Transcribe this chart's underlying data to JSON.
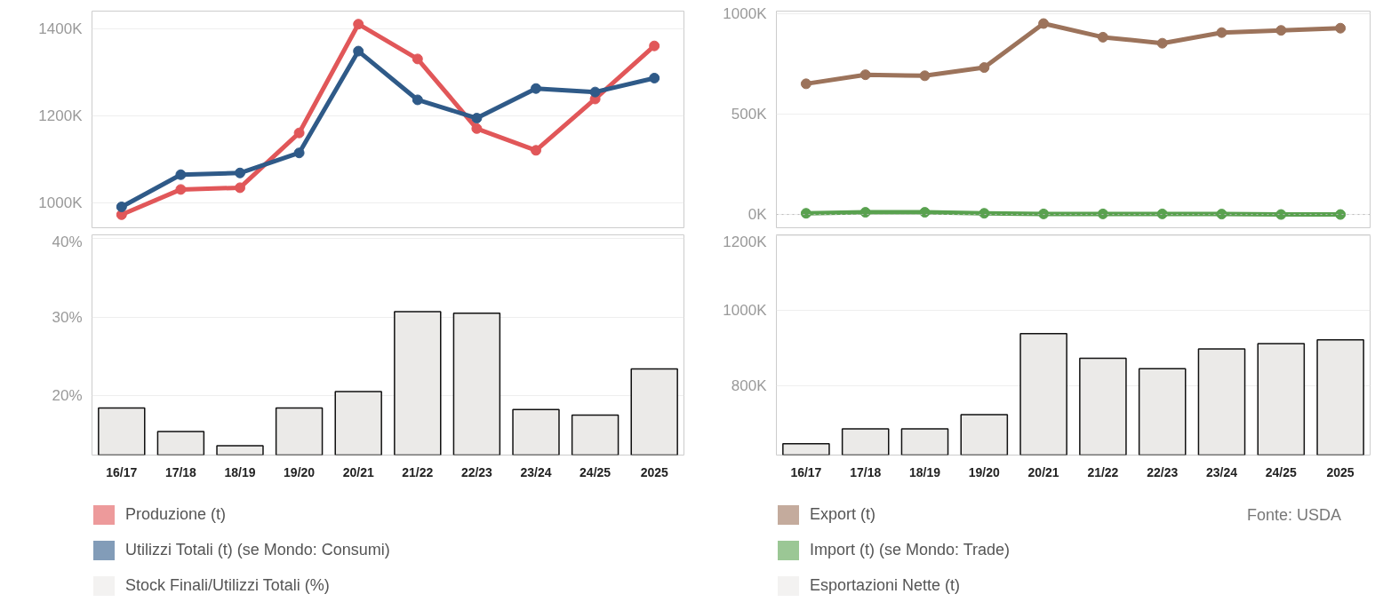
{
  "chart_data": [
    {
      "type": "line",
      "categories": [
        null,
        null,
        null,
        null,
        null,
        null,
        null,
        null,
        null,
        null
      ],
      "series": [
        {
          "name": "Produzione (t)",
          "color": "#e15759",
          "values": [
            972,
            1030,
            1034,
            1160,
            1410,
            1330,
            1170,
            1120,
            1238,
            1360
          ]
        },
        {
          "name": "Utilizzi Totali (t) (se Mondo: Consumi)",
          "color": "#2f5a88",
          "values": [
            990,
            1064,
            1068,
            1114,
            1348,
            1236,
            1194,
            1262,
            1254,
            1286
          ]
        }
      ],
      "ylim": [
        942,
        1440
      ],
      "yticks": [
        {
          "value": 1000,
          "label": "1000K"
        },
        {
          "value": 1200,
          "label": "1200K"
        },
        {
          "value": 1400,
          "label": "1400K"
        }
      ],
      "grid": "y",
      "marker": "circle",
      "legend": "bottom",
      "tick_labels": "y"
    },
    {
      "type": "line",
      "categories": [
        null,
        null,
        null,
        null,
        null,
        null,
        null,
        null,
        null,
        null
      ],
      "series": [
        {
          "name": "Export (t)",
          "color": "#9c735b",
          "values": [
            651,
            696,
            691,
            732,
            951,
            883,
            853,
            906,
            917,
            928
          ]
        },
        {
          "name": "Import (t) (se Mondo: Trade)",
          "color": "#59a14f",
          "values": [
            6,
            11,
            11,
            6,
            3,
            3,
            3,
            2,
            0,
            0
          ]
        }
      ],
      "ylim": [
        -66,
        1013
      ],
      "yticks": [
        {
          "value": 0,
          "label": "0K"
        },
        {
          "value": 500,
          "label": "500K"
        },
        {
          "value": 1000,
          "label": "1000K"
        }
      ],
      "ref_lines": [
        {
          "axis": "y",
          "value": 0,
          "color": "#bbbbbb",
          "line_style": "dotted"
        }
      ],
      "grid": "y",
      "marker": "circle",
      "legend": "bottom",
      "tick_labels": "y"
    },
    {
      "type": "bar",
      "categories": [
        "16/17",
        "17/18",
        "18/19",
        "19/20",
        "20/21",
        "21/22",
        "22/23",
        "23/24",
        "24/25",
        "2025"
      ],
      "series": [
        {
          "name": "Stock Finali/Utilizzi Totali (%)",
          "color": "#ebeae8",
          "values": [
            18.4,
            15.4,
            13.6,
            18.4,
            20.5,
            30.7,
            30.5,
            18.2,
            17.5,
            23.4
          ]
        }
      ],
      "ylim": [
        12.4,
        40.5
      ],
      "yticks": [
        {
          "value": 20,
          "label": "20%"
        },
        {
          "value": 30,
          "label": "30%"
        },
        {
          "value": 40,
          "label": "40%"
        }
      ],
      "grid": "y",
      "legend": "bottom"
    },
    {
      "type": "bar",
      "categories": [
        "16/17",
        "17/18",
        "18/19",
        "19/20",
        "20/21",
        "21/22",
        "22/23",
        "23/24",
        "24/25",
        "2025"
      ],
      "series": [
        {
          "name": "Esportazioni Nette (t)",
          "color": "#ebeae8",
          "values": [
            644,
            684,
            684,
            722,
            939,
            873,
            845,
            898,
            912,
            922
          ]
        }
      ],
      "ylim": [
        614,
        1203
      ],
      "yticks": [
        {
          "value": 800,
          "label": "800K"
        },
        {
          "value": 1000,
          "label": "1000K"
        },
        {
          "value": 1200,
          "label": "1200K"
        }
      ],
      "grid": "y",
      "legend": "bottom",
      "annotations": [
        "Fonte: USDA"
      ]
    }
  ]
}
